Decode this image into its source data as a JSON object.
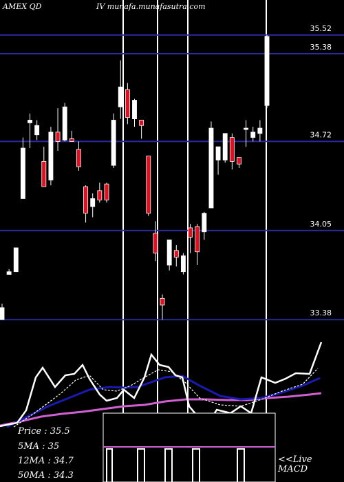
{
  "header": {
    "ticker": "AMEX  QD",
    "source": "IV munafa.munafasutra.com"
  },
  "info": {
    "price": "Price   : 35.5",
    "ma5": "5MA : 35",
    "ma12": "12MA : 34.7",
    "ma50": "50MA : 34.3"
  },
  "macd_label": {
    "line1": "<<Live",
    "line2": "MACD"
  },
  "colors": {
    "background": "#000000",
    "bull": "#ffffff",
    "bear": "#e01020",
    "price_lines": "#2a2a9a",
    "ma5": "#ffffff",
    "ma12": "#1a1ab0",
    "ma50": "#d060d0"
  },
  "chart_data": {
    "type": "candlestick",
    "price_levels": [
      35.52,
      35.38,
      34.72,
      34.05,
      33.38
    ],
    "price_range": [
      33.35,
      35.68
    ],
    "candles": [
      {
        "open": 33.38,
        "close": 33.47,
        "high": 33.5,
        "low": 33.38
      },
      {
        "open": 33.72,
        "close": 33.74,
        "high": 33.76,
        "low": 33.72
      },
      {
        "open": 33.74,
        "close": 33.92,
        "high": 33.92,
        "low": 33.74
      },
      {
        "open": 34.29,
        "close": 34.67,
        "high": 34.75,
        "low": 34.29
      },
      {
        "open": 34.86,
        "close": 34.88,
        "high": 34.93,
        "low": 34.67
      },
      {
        "open": 34.77,
        "close": 34.84,
        "high": 34.88,
        "low": 34.73
      },
      {
        "open": 34.57,
        "close": 34.38,
        "high": 34.68,
        "low": 34.38
      },
      {
        "open": 34.43,
        "close": 34.79,
        "high": 34.83,
        "low": 34.39
      },
      {
        "open": 34.79,
        "close": 34.72,
        "high": 34.97,
        "low": 34.65
      },
      {
        "open": 34.73,
        "close": 34.98,
        "high": 35.01,
        "low": 34.72
      },
      {
        "open": 34.74,
        "close": 34.72,
        "high": 34.8,
        "low": 34.72
      },
      {
        "open": 34.66,
        "close": 34.53,
        "high": 34.72,
        "low": 34.5
      },
      {
        "open": 34.38,
        "close": 34.18,
        "high": 34.39,
        "low": 34.11
      },
      {
        "open": 34.23,
        "close": 34.29,
        "high": 34.33,
        "low": 34.15
      },
      {
        "open": 34.35,
        "close": 34.28,
        "high": 34.41,
        "low": 34.26
      },
      {
        "open": 34.4,
        "close": 34.28,
        "high": 34.41,
        "low": 34.26
      },
      {
        "open": 34.54,
        "close": 34.88,
        "high": 34.93,
        "low": 34.52
      },
      {
        "open": 34.98,
        "close": 35.13,
        "high": 35.33,
        "low": 34.89
      },
      {
        "open": 35.11,
        "close": 34.9,
        "high": 35.16,
        "low": 34.85
      },
      {
        "open": 34.89,
        "close": 35.03,
        "high": 35.04,
        "low": 34.83
      },
      {
        "open": 34.88,
        "close": 34.84,
        "high": 34.88,
        "low": 34.74
      },
      {
        "open": 34.61,
        "close": 34.18,
        "high": 34.61,
        "low": 34.16
      },
      {
        "open": 34.03,
        "close": 33.88,
        "high": 34.12,
        "low": 33.82
      },
      {
        "open": 33.54,
        "close": 33.49,
        "high": 33.57,
        "low": 33.38
      },
      {
        "open": 33.79,
        "close": 33.98,
        "high": 33.98,
        "low": 33.75
      },
      {
        "open": 33.9,
        "close": 33.85,
        "high": 33.94,
        "low": 33.78
      },
      {
        "open": 33.74,
        "close": 33.86,
        "high": 33.88,
        "low": 33.72
      },
      {
        "open": 34.07,
        "close": 34.0,
        "high": 34.1,
        "low": 33.88
      },
      {
        "open": 34.08,
        "close": 33.89,
        "high": 34.1,
        "low": 33.79
      },
      {
        "open": 34.04,
        "close": 34.18,
        "high": 34.19,
        "low": 33.98
      },
      {
        "open": 34.22,
        "close": 34.82,
        "high": 34.87,
        "low": 34.22
      },
      {
        "open": 34.58,
        "close": 34.68,
        "high": 34.68,
        "low": 34.47
      },
      {
        "open": 34.58,
        "close": 34.78,
        "high": 34.78,
        "low": 34.56
      },
      {
        "open": 34.75,
        "close": 34.57,
        "high": 34.78,
        "low": 34.51
      },
      {
        "open": 34.6,
        "close": 34.55,
        "high": 34.6,
        "low": 34.52
      },
      {
        "open": 34.81,
        "close": 34.82,
        "high": 34.88,
        "low": 34.68
      },
      {
        "open": 34.75,
        "close": 34.79,
        "high": 34.83,
        "low": 34.72
      },
      {
        "open": 34.78,
        "close": 34.82,
        "high": 34.88,
        "low": 34.72
      },
      {
        "open": 34.99,
        "close": 35.51,
        "high": 35.52,
        "low": 34.97
      }
    ]
  }
}
